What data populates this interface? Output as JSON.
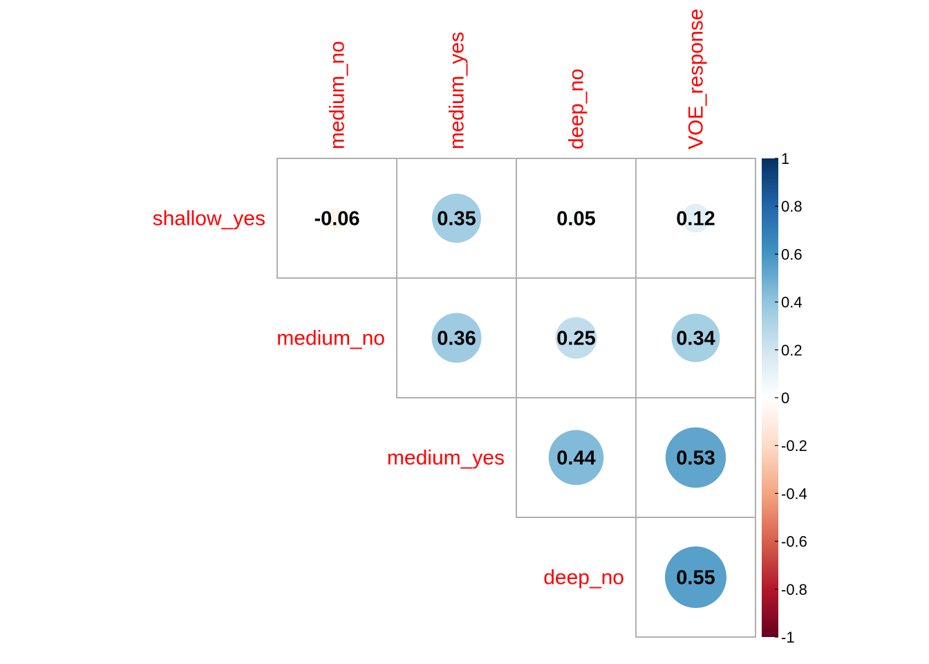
{
  "chart_data": {
    "type": "heatmap",
    "style": "correlation-circles",
    "shape": "upper-triangle",
    "row_labels": [
      "shallow_yes",
      "medium_no",
      "medium_yes",
      "deep_no"
    ],
    "col_labels": [
      "medium_no",
      "medium_yes",
      "deep_no",
      "VOE_response"
    ],
    "cells": [
      {
        "row": 0,
        "col": 0,
        "value": -0.06,
        "label": "-0.06"
      },
      {
        "row": 0,
        "col": 1,
        "value": 0.35,
        "label": "0.35"
      },
      {
        "row": 0,
        "col": 2,
        "value": 0.05,
        "label": "0.05"
      },
      {
        "row": 0,
        "col": 3,
        "value": 0.12,
        "label": "0.12"
      },
      {
        "row": 1,
        "col": 1,
        "value": 0.36,
        "label": "0.36"
      },
      {
        "row": 1,
        "col": 2,
        "value": 0.25,
        "label": "0.25"
      },
      {
        "row": 1,
        "col": 3,
        "value": 0.34,
        "label": "0.34"
      },
      {
        "row": 2,
        "col": 2,
        "value": 0.44,
        "label": "0.44"
      },
      {
        "row": 2,
        "col": 3,
        "value": 0.53,
        "label": "0.53"
      },
      {
        "row": 3,
        "col": 3,
        "value": 0.55,
        "label": "0.55"
      }
    ],
    "colorbar": {
      "range": [
        -1,
        1
      ],
      "ticks": [
        "1",
        "0.8",
        "0.6",
        "0.4",
        "0.2",
        "0",
        "-0.2",
        "-0.4",
        "-0.6",
        "-0.8",
        "-1"
      ],
      "colors": [
        "#67001f",
        "#b2182b",
        "#d6604d",
        "#f4a582",
        "#fddbc7",
        "#ffffff",
        "#d1e5f0",
        "#92c5de",
        "#4393c3",
        "#2166ac",
        "#053061"
      ]
    },
    "label_color": "#ff0000",
    "grid": true
  }
}
